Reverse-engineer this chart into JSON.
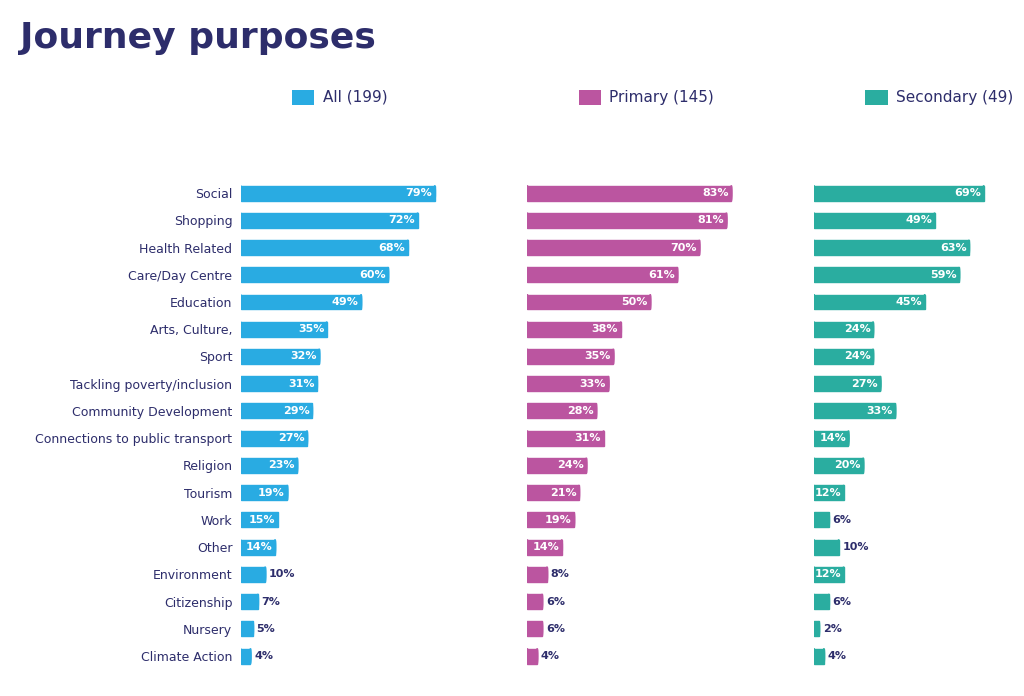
{
  "title": "Journey purposes",
  "title_color": "#2d2d6b",
  "background_color": "#ffffff",
  "categories": [
    "Social",
    "Shopping",
    "Health Related",
    "Care/Day Centre",
    "Education",
    "Arts, Culture,",
    "Sport",
    "Tackling poverty/inclusion",
    "Community Development",
    "Connections to public transport",
    "Religion",
    "Tourism",
    "Work",
    "Other",
    "Environment",
    "Citizenship",
    "Nursery",
    "Climate Action"
  ],
  "series": [
    {
      "label": "All (199)",
      "color": "#29abe2",
      "values": [
        79,
        72,
        68,
        60,
        49,
        35,
        32,
        31,
        29,
        27,
        23,
        19,
        15,
        14,
        10,
        7,
        5,
        4
      ]
    },
    {
      "label": "Primary (145)",
      "color": "#bb55a0",
      "values": [
        83,
        81,
        70,
        61,
        50,
        38,
        35,
        33,
        28,
        31,
        24,
        21,
        19,
        14,
        8,
        6,
        6,
        4
      ]
    },
    {
      "label": "Secondary (49)",
      "color": "#2aada0",
      "values": [
        69,
        49,
        63,
        59,
        45,
        24,
        24,
        27,
        33,
        14,
        20,
        12,
        6,
        10,
        12,
        6,
        2,
        4
      ]
    }
  ],
  "label_color": "#ffffff",
  "category_color": "#2d2d6b",
  "legend_fontsize": 11,
  "cat_fontsize": 9,
  "val_fontsize": 8,
  "title_fontsize": 26,
  "bar_height": 0.55,
  "xlim": [
    0,
    100
  ],
  "threshold_inside": 12
}
